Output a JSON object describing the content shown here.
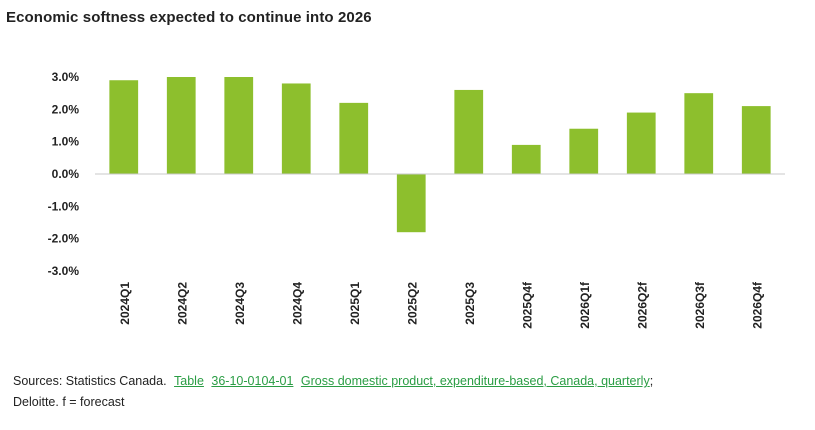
{
  "title": "Economic softness expected to continue into 2026",
  "chart_data": {
    "type": "bar",
    "categories": [
      "2024Q1",
      "2024Q2",
      "2024Q3",
      "2024Q4",
      "2025Q1",
      "2025Q2",
      "2025Q3",
      "2025Q4f",
      "2026Q1f",
      "2026Q2f",
      "2026Q3f",
      "2026Q4f"
    ],
    "values": [
      2.9,
      3.0,
      3.0,
      2.8,
      2.2,
      -1.8,
      2.6,
      0.9,
      1.4,
      1.9,
      2.5,
      2.1
    ],
    "y_ticks": [
      3.0,
      2.0,
      1.0,
      0.0,
      -1.0,
      -2.0,
      -3.0
    ],
    "y_tick_labels": [
      "3.0%",
      "2.0%",
      "1.0%",
      "0.0%",
      "-1.0%",
      "-2.0%",
      "-3.0%"
    ],
    "ylim": [
      -3.0,
      3.0
    ],
    "grid": false,
    "legend": "none",
    "bar_color": "#8dbf2d"
  },
  "source": {
    "prefix": "Sources:  Statistics  Canada.",
    "link1": "Table",
    "link2": "36-10-0104-01",
    "link3": "Gross domestic product, expenditure-based,  Canada,  quarterly",
    "after": ";",
    "line2": "Deloitte. f = forecast"
  }
}
